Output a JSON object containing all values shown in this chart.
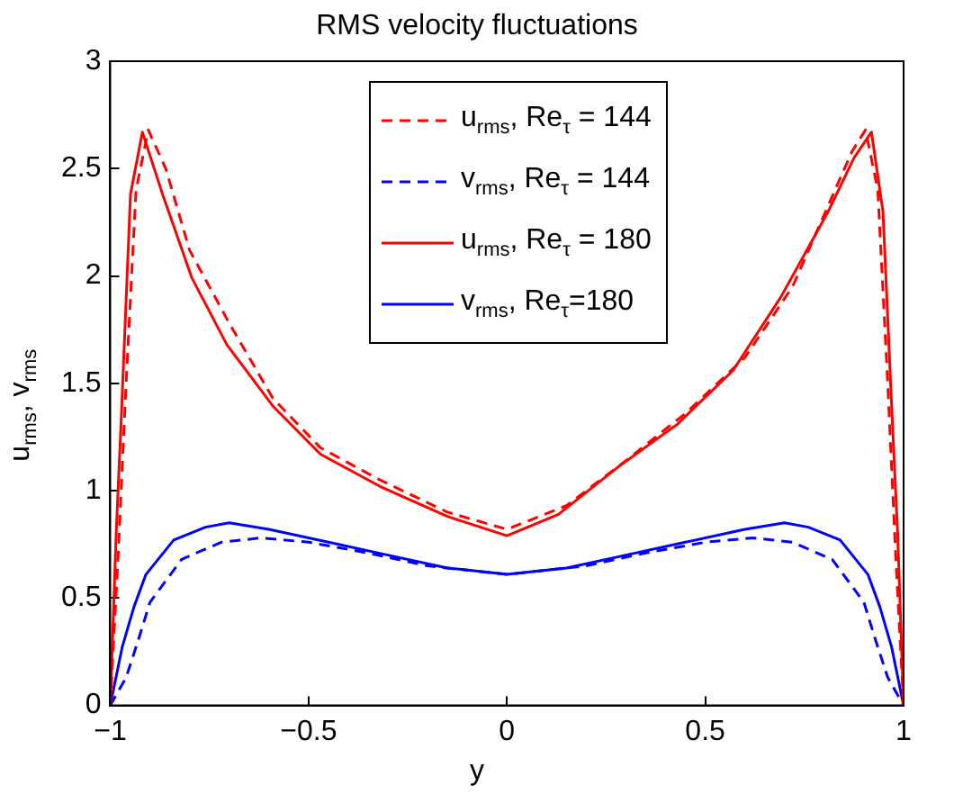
{
  "chart_data": {
    "type": "line",
    "title": "RMS velocity fluctuations",
    "xlabel": "y",
    "ylabel": "u$_{rms}$, v$_{rms}$",
    "xlim": [
      -1,
      1
    ],
    "xticks": [
      {
        "value": -1,
        "label": "−1"
      },
      {
        "value": -0.5,
        "label": "−0.5"
      },
      0,
      0.5,
      1
    ],
    "ylim": [
      0,
      3
    ],
    "yticks": [
      0,
      0.5,
      1,
      1.5,
      2,
      2.5,
      3
    ],
    "grid": false,
    "legend": "top",
    "marker": "none",
    "series": [
      {
        "name": "u$_{rms}$, Re$_{τ}$ = 144",
        "color": "#ff0000",
        "line_style": "dashed",
        "x": [
          -1,
          -0.98,
          -0.96,
          -0.935,
          -0.904,
          -0.86,
          -0.8,
          -0.7,
          -0.59,
          -0.47,
          -0.32,
          -0.15,
          0,
          0.15,
          0.3,
          0.45,
          0.6,
          0.72,
          0.82,
          0.87,
          0.904,
          0.935,
          0.96,
          0.98,
          1
        ],
        "values": [
          0,
          0.7,
          1.5,
          2.4,
          2.68,
          2.5,
          2.12,
          1.78,
          1.43,
          1.2,
          1.05,
          0.9,
          0.82,
          0.93,
          1.14,
          1.36,
          1.62,
          1.95,
          2.37,
          2.58,
          2.68,
          2.4,
          1.5,
          0.7,
          0
        ]
      },
      {
        "name": "v$_{rms}$, Re$_{τ}$ = 144",
        "color": "#0000ff",
        "line_style": "dashed",
        "x": [
          -1,
          -0.96,
          -0.93,
          -0.9,
          -0.82,
          -0.72,
          -0.62,
          -0.5,
          -0.35,
          -0.2,
          0,
          0.2,
          0.35,
          0.5,
          0.62,
          0.72,
          0.82,
          0.9,
          0.93,
          0.96,
          1
        ],
        "values": [
          0,
          0.13,
          0.3,
          0.48,
          0.68,
          0.76,
          0.78,
          0.76,
          0.71,
          0.65,
          0.61,
          0.65,
          0.71,
          0.76,
          0.78,
          0.76,
          0.68,
          0.48,
          0.3,
          0.13,
          0
        ]
      },
      {
        "name": "u$_{rms}$, Re$_{τ}$ = 180",
        "color": "#ff0000",
        "line_style": "solid",
        "x": [
          -1,
          -0.985,
          -0.971,
          -0.949,
          -0.919,
          -0.868,
          -0.794,
          -0.706,
          -0.588,
          -0.47,
          -0.32,
          -0.15,
          0,
          0.13,
          0.28,
          0.43,
          0.57,
          0.69,
          0.81,
          0.875,
          0.919,
          0.948,
          0.97,
          0.985,
          1
        ],
        "values": [
          0,
          0.8,
          1.39,
          2.38,
          2.67,
          2.38,
          1.99,
          1.68,
          1.39,
          1.17,
          1.02,
          0.88,
          0.79,
          0.89,
          1.11,
          1.31,
          1.56,
          1.9,
          2.3,
          2.55,
          2.67,
          2.3,
          1.39,
          0.8,
          0
        ]
      },
      {
        "name": "v$_{rms}$, Re$_{τ}$=180",
        "color": "#0000ff",
        "line_style": "solid",
        "x": [
          -1,
          -0.97,
          -0.94,
          -0.91,
          -0.84,
          -0.76,
          -0.7,
          -0.6,
          -0.45,
          -0.3,
          -0.15,
          0,
          0.15,
          0.3,
          0.45,
          0.6,
          0.7,
          0.76,
          0.84,
          0.91,
          0.94,
          0.97,
          1
        ],
        "values": [
          0,
          0.27,
          0.46,
          0.61,
          0.77,
          0.83,
          0.85,
          0.82,
          0.76,
          0.7,
          0.64,
          0.61,
          0.64,
          0.7,
          0.76,
          0.82,
          0.85,
          0.83,
          0.77,
          0.61,
          0.46,
          0.27,
          0
        ]
      }
    ]
  }
}
